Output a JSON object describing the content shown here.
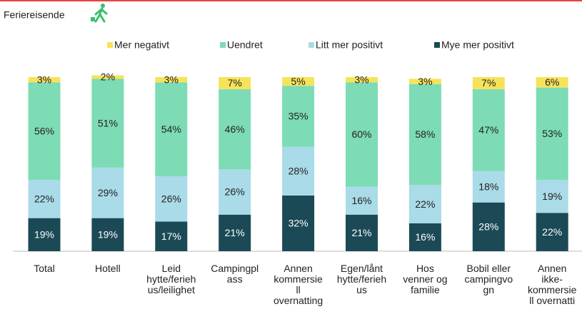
{
  "chart_data": {
    "type": "stacked_bar",
    "title": "Feriereisende",
    "categories": [
      "Total",
      "Hotell",
      "Leid\nhytte/ferieh\nus/leilighet",
      "Campingpl\nass",
      "Annen\nkommersie\nll\novernatting",
      "Egen/lånt\nhytte/ferieh\nus",
      "Hos\nvenner og\nfamilie",
      "Bobil eller\ncampingvo\ngn",
      "Annen\nikke-\nkommersie\nll overnatti"
    ],
    "ylim": [
      0,
      100
    ],
    "series": [
      {
        "name": "Mer negativt",
        "color": "#f7e35a",
        "values": [
          3,
          2,
          3,
          7,
          5,
          3,
          3,
          7,
          6
        ],
        "value_labels": [
          "3%",
          "2%",
          "3%",
          "7%",
          "5%",
          "3%",
          "3%",
          "7%",
          "6%"
        ]
      },
      {
        "name": "Uendret",
        "color": "#7ddbb6",
        "values": [
          56,
          51,
          54,
          46,
          35,
          60,
          58,
          47,
          53
        ],
        "value_labels": [
          "56%",
          "51%",
          "54%",
          "46%",
          "35%",
          "60%",
          "58%",
          "47%",
          "53%"
        ]
      },
      {
        "name": "Litt mer positivt",
        "color": "#a9dbe8",
        "values": [
          22,
          29,
          26,
          26,
          28,
          16,
          22,
          18,
          19
        ],
        "value_labels": [
          "22%",
          "29%",
          "26%",
          "26%",
          "28%",
          "16%",
          "22%",
          "18%",
          "19%"
        ]
      },
      {
        "name": "Mye mer positivt",
        "color": "#1b4a56",
        "values": [
          19,
          19,
          17,
          21,
          32,
          21,
          16,
          28,
          22
        ],
        "value_labels": [
          "19%",
          "19%",
          "17%",
          "21%",
          "32%",
          "21%",
          "16%",
          "28%",
          "22%"
        ]
      }
    ]
  }
}
